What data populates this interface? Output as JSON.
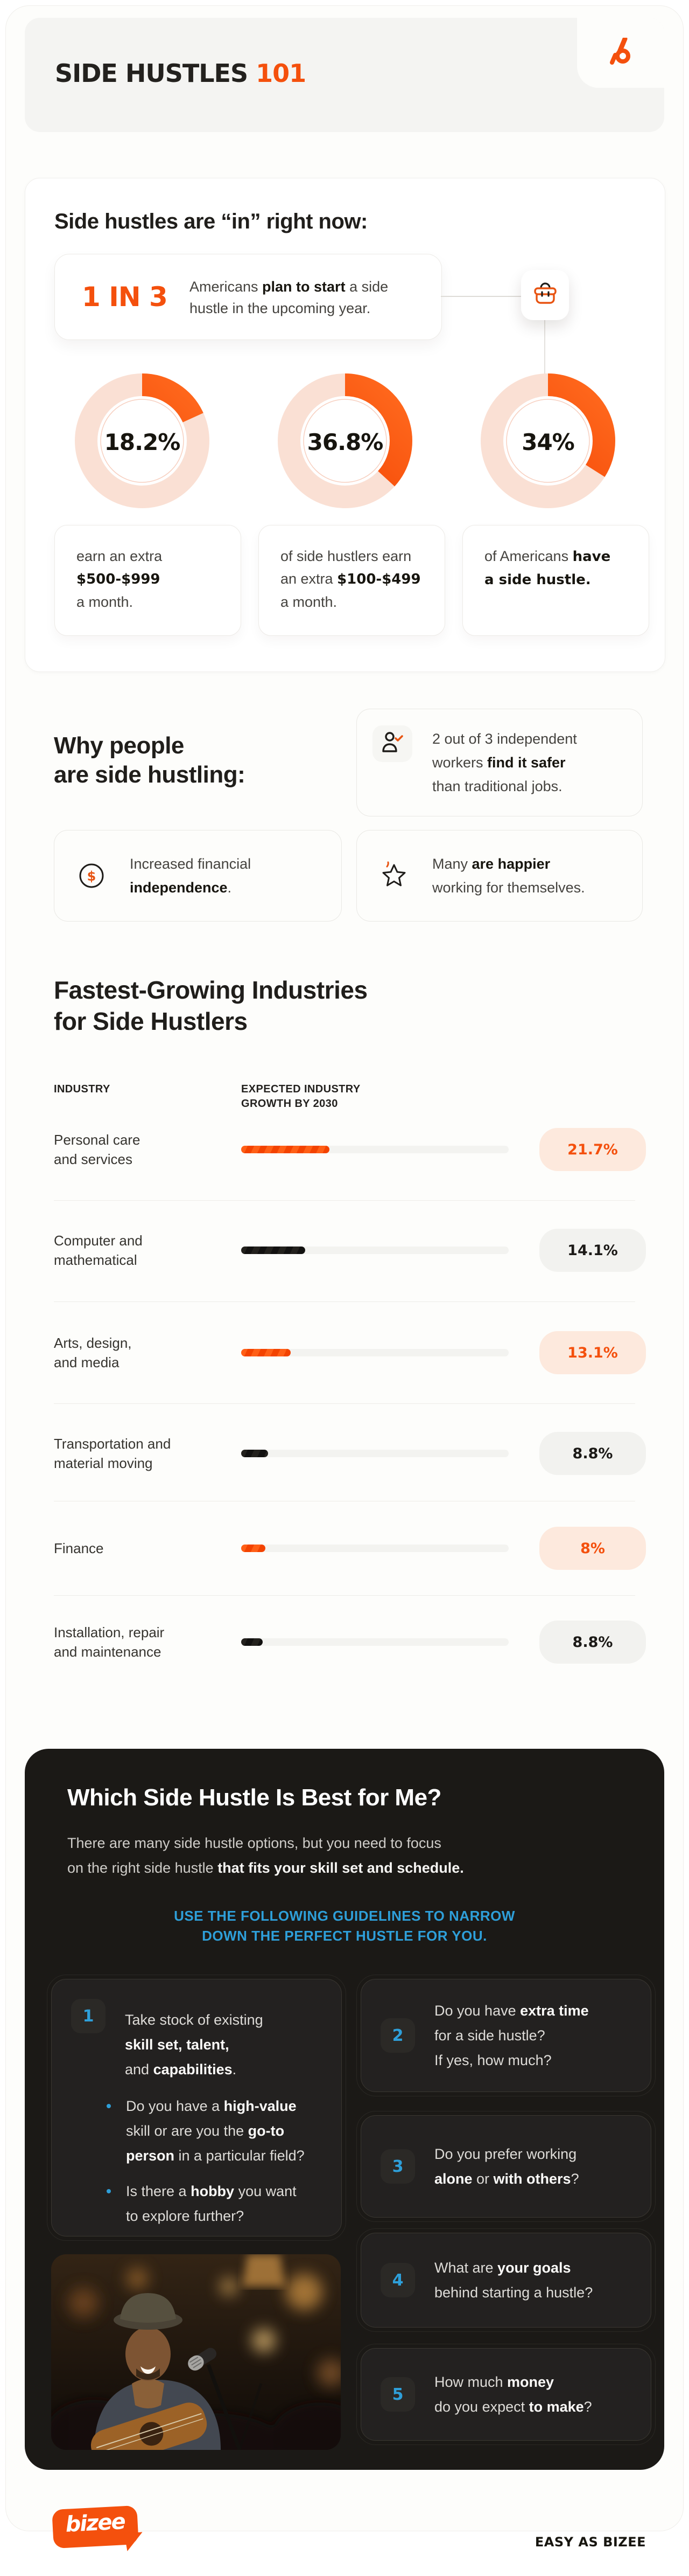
{
  "colors": {
    "accent_orange": "#F4500D",
    "orange_grad_from": "#F23E00",
    "orange_grad_to": "#FF6A1E",
    "pale_ring": "#FAE0D4",
    "pale_badge": "#FDE9DD",
    "dark_bg": "#1B1916",
    "dark_card": "#232120",
    "accent_blue": "#2E9FD9",
    "near_black": "#17150F"
  },
  "header": {
    "title_main": "SIDE HUSTLES",
    "title_accent": "101",
    "logo_icon": "bizee-b-mark"
  },
  "intro": {
    "heading": "Side hustles are “in” right now:",
    "stat": {
      "big": "1 IN 3",
      "lines": [
        [
          {
            "t": "Americans ",
            "b": 0
          },
          {
            "t": "plan to start",
            "b": 1
          },
          {
            "t": " a side",
            "b": 0
          }
        ],
        [
          {
            "t": "hustle in the upcoming year.",
            "b": 0
          }
        ]
      ]
    },
    "donuts": [
      {
        "pct_label": "18.2%",
        "value": 18.2,
        "caption": [
          [
            "earn an extra"
          ],
          [
            {
              "t": "$500-$999",
              "b": 1
            }
          ],
          [
            "a month."
          ]
        ]
      },
      {
        "pct_label": "36.8%",
        "value": 36.8,
        "caption": [
          [
            "of side hustlers earn"
          ],
          [
            {
              "t": "an extra ",
              "b": 0
            },
            {
              "t": "$100-$499",
              "b": 1
            }
          ],
          [
            "a month."
          ]
        ]
      },
      {
        "pct_label": "34%",
        "value": 34,
        "caption": [
          [
            {
              "t": "of Americans ",
              "b": 0
            },
            {
              "t": "have",
              "b": 1
            }
          ],
          [
            {
              "t": "a side hustle.",
              "b": 1
            }
          ]
        ]
      }
    ]
  },
  "why": {
    "heading": [
      "Why people",
      "are side hustling:"
    ],
    "cards": [
      {
        "icon": "person-check-icon",
        "lines": [
          [
            "2 out of 3 independent"
          ],
          [
            {
              "t": "workers ",
              "b": 0
            },
            {
              "t": "find it safer",
              "b": 1
            }
          ],
          [
            "than traditional jobs."
          ]
        ]
      },
      {
        "icon": "dollar-coin-icon",
        "lines": [
          [
            "Increased financial"
          ],
          [
            {
              "t": "independence",
              "b": 1
            },
            {
              "t": ".",
              "b": 0
            }
          ]
        ]
      },
      {
        "icon": "star-icon",
        "lines": [
          [
            {
              "t": "Many ",
              "b": 0
            },
            {
              "t": "are happier",
              "b": 1
            }
          ],
          [
            "working for themselves."
          ]
        ]
      }
    ]
  },
  "industries": {
    "heading": [
      "Fastest-Growing Industries",
      "for Side Hustlers"
    ],
    "col1": "INDUSTRY",
    "col2": [
      "EXPECTED INDUSTRY",
      "GROWTH BY 2030"
    ],
    "rows": [
      {
        "label": [
          "Personal care",
          "and services"
        ],
        "pct": "21.7%",
        "value": 21.7,
        "color": "orange",
        "bar_pct": 33
      },
      {
        "label": [
          "Computer and",
          "mathematical"
        ],
        "pct": "14.1%",
        "value": 14.1,
        "color": "black",
        "bar_pct": 24
      },
      {
        "label": [
          "Arts, design,",
          "and media"
        ],
        "pct": "13.1%",
        "value": 13.1,
        "color": "orange",
        "bar_pct": 18.5
      },
      {
        "label": [
          "Transportation and",
          "material moving"
        ],
        "pct": "8.8%",
        "value": 8.8,
        "color": "black",
        "bar_pct": 10
      },
      {
        "label": [
          "Finance"
        ],
        "pct": "8%",
        "value": 8,
        "color": "orange",
        "bar_pct": 9
      },
      {
        "label": [
          "Installation, repair",
          "and maintenance"
        ],
        "pct": "8.8%",
        "value": 8.8,
        "color": "black",
        "bar_pct": 8
      }
    ]
  },
  "quiz": {
    "heading": "Which Side Hustle Is Best for Me?",
    "intro": [
      [
        "There are many side hustle options, but you need to focus"
      ],
      [
        {
          "t": "on the right side hustle ",
          "b": 0
        },
        {
          "t": "that fits your skill set and schedule.",
          "b": 1
        }
      ]
    ],
    "cta": [
      "USE THE FOLLOWING GUIDELINES TO NARROW",
      "DOWN THE PERFECT HUSTLE FOR YOU."
    ],
    "cards": [
      {
        "num": "1",
        "lines": [
          [
            "Take stock of existing"
          ],
          [
            {
              "t": "skill set, talent,",
              "b": 1
            }
          ],
          [
            {
              "t": "and ",
              "b": 0
            },
            {
              "t": "capabilities",
              "b": 1
            },
            {
              "t": ".",
              "b": 0
            }
          ]
        ],
        "bullets": [
          [
            [
              {
                "t": "Do you have a ",
                "b": 0
              },
              {
                "t": "high-value",
                "b": 1
              }
            ],
            [
              {
                "t": "skill or are you the ",
                "b": 0
              },
              {
                "t": "go-to",
                "b": 1
              }
            ],
            [
              {
                "t": "person",
                "b": 1
              },
              {
                "t": " in a particular field?",
                "b": 0
              }
            ]
          ],
          [
            [
              {
                "t": "Is there a ",
                "b": 0
              },
              {
                "t": "hobby",
                "b": 1
              },
              {
                "t": " you want",
                "b": 0
              }
            ],
            [
              "to explore further?"
            ]
          ]
        ]
      },
      {
        "num": "2",
        "lines": [
          [
            {
              "t": "Do you have ",
              "b": 0
            },
            {
              "t": "extra time",
              "b": 1
            }
          ],
          [
            "for a side hustle?"
          ],
          [
            "If yes, how much?"
          ]
        ]
      },
      {
        "num": "3",
        "lines": [
          [
            "Do you prefer working"
          ],
          [
            {
              "t": "alone",
              "b": 1
            },
            {
              "t": " or ",
              "b": 0
            },
            {
              "t": "with others",
              "b": 1
            },
            {
              "t": "?",
              "b": 0
            }
          ]
        ]
      },
      {
        "num": "4",
        "lines": [
          [
            {
              "t": "What are ",
              "b": 0
            },
            {
              "t": "your goals",
              "b": 1
            }
          ],
          [
            "behind starting a hustle?"
          ]
        ]
      },
      {
        "num": "5",
        "lines": [
          [
            {
              "t": "How much ",
              "b": 0
            },
            {
              "t": "money",
              "b": 1
            }
          ],
          [
            {
              "t": "do you expect ",
              "b": 0
            },
            {
              "t": "to make",
              "b": 1
            },
            {
              "t": "?",
              "b": 0
            }
          ]
        ]
      }
    ],
    "photo": "singer-with-guitar-and-microphone"
  },
  "footer": {
    "logo_text": "bizee",
    "tagline": "EASY AS BIZEE"
  },
  "chart_data": [
    {
      "type": "pie",
      "title": "Side hustle share stats (donut trio)",
      "unit": "%",
      "legend_position": "below",
      "series": [
        {
          "label": "earn an extra $500-$999 a month",
          "value": 18.2
        },
        {
          "label": "of side hustlers earn an extra $100-$499 a month",
          "value": 36.8
        },
        {
          "label": "of Americans have a side hustle",
          "value": 34
        }
      ]
    },
    {
      "type": "bar",
      "title": "Fastest-Growing Industries for Side Hustlers",
      "categories": [
        "Personal care and services",
        "Computer and mathematical",
        "Arts, design, and media",
        "Transportation and material moving",
        "Finance",
        "Installation, repair and maintenance"
      ],
      "values": [
        21.7,
        14.1,
        13.1,
        8.8,
        8,
        8.8
      ],
      "xlabel": "EXPECTED INDUSTRY GROWTH BY 2030",
      "ylabel": "INDUSTRY",
      "xlim": [
        0,
        65
      ],
      "grid": false
    }
  ]
}
